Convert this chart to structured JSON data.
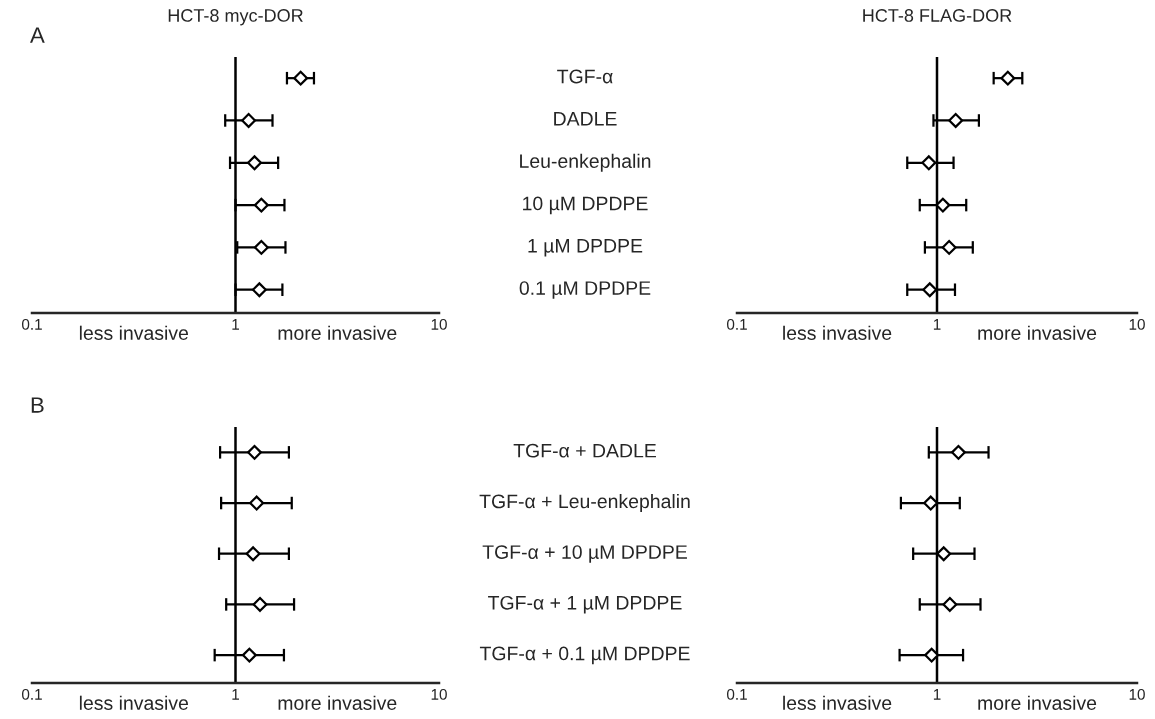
{
  "chart_data": [
    {
      "type": "scatter",
      "title": "HCT-8 myc-DOR",
      "annotations": [
        "A",
        "less invasive",
        "more invasive"
      ],
      "categories": [
        "TGF-α",
        "DADLE",
        "Leu-enkephalin",
        "10 µM DPDPE",
        "1 µM DPDPE",
        "0.1 µM DPDPE"
      ],
      "orientation": "horizontal",
      "log": "x",
      "xlim": [
        0.1,
        10
      ],
      "xticks": [
        0.1,
        1,
        10
      ],
      "marker": "diamond",
      "ref_lines": [
        {
          "axis": "x",
          "value": 1,
          "color": "#000000"
        }
      ],
      "series": [
        {
          "color": "#000000",
          "values": [
            2.09,
            1.16,
            1.24,
            1.34,
            1.34,
            1.31
          ],
          "errors": [
            [
              1.79,
              2.43
            ],
            [
              0.89,
              1.52
            ],
            [
              0.94,
              1.62
            ],
            [
              1.0,
              1.74
            ],
            [
              1.02,
              1.76
            ],
            [
              1.0,
              1.7
            ]
          ]
        }
      ]
    },
    {
      "type": "scatter",
      "title": "HCT-8 FLAG-DOR",
      "annotations": [
        "less invasive",
        "more invasive"
      ],
      "categories": [
        null,
        null,
        null,
        null,
        null,
        null
      ],
      "orientation": "horizontal",
      "log": "x",
      "xlim": [
        0.1,
        10
      ],
      "xticks": [
        0.1,
        1,
        10
      ],
      "marker": "diamond",
      "ref_lines": [
        {
          "axis": "x",
          "value": 1,
          "color": "#000000"
        }
      ],
      "series": [
        {
          "color": "#000000",
          "values": [
            2.26,
            1.24,
            0.91,
            1.07,
            1.15,
            0.92
          ],
          "errors": [
            [
              1.92,
              2.67
            ],
            [
              0.96,
              1.62
            ],
            [
              0.71,
              1.21
            ],
            [
              0.82,
              1.4
            ],
            [
              0.87,
              1.51
            ],
            [
              0.71,
              1.23
            ]
          ]
        }
      ]
    },
    {
      "type": "scatter",
      "annotations": [
        "B",
        "less invasive",
        "more invasive"
      ],
      "categories": [
        "TGF-α + DADLE",
        "TGF-α + Leu-enkephalin",
        "TGF-α + 10 µM DPDPE",
        "TGF-α + 1 µM DPDPE",
        "TGF-α + 0.1 µM DPDPE"
      ],
      "orientation": "horizontal",
      "log": "x",
      "xlim": [
        0.1,
        10
      ],
      "xticks": [
        0.1,
        1,
        10
      ],
      "marker": "diamond",
      "ref_lines": [
        {
          "axis": "x",
          "value": 1,
          "color": "#000000"
        }
      ],
      "series": [
        {
          "color": "#000000",
          "values": [
            1.24,
            1.27,
            1.22,
            1.32,
            1.17
          ],
          "errors": [
            [
              0.84,
              1.83
            ],
            [
              0.85,
              1.89
            ],
            [
              0.83,
              1.83
            ],
            [
              0.9,
              1.94
            ],
            [
              0.79,
              1.73
            ]
          ]
        }
      ]
    },
    {
      "type": "scatter",
      "annotations": [
        "less invasive",
        "more invasive"
      ],
      "categories": [
        null,
        null,
        null,
        null,
        null
      ],
      "orientation": "horizontal",
      "log": "x",
      "xlim": [
        0.1,
        10
      ],
      "xticks": [
        0.1,
        1,
        10
      ],
      "marker": "diamond",
      "ref_lines": [
        {
          "axis": "x",
          "value": 1,
          "color": "#000000"
        }
      ],
      "series": [
        {
          "color": "#000000",
          "values": [
            1.28,
            0.93,
            1.08,
            1.16,
            0.94
          ],
          "errors": [
            [
              0.91,
              1.81
            ],
            [
              0.66,
              1.3
            ],
            [
              0.76,
              1.54
            ],
            [
              0.82,
              1.65
            ],
            [
              0.65,
              1.35
            ]
          ]
        }
      ]
    }
  ]
}
